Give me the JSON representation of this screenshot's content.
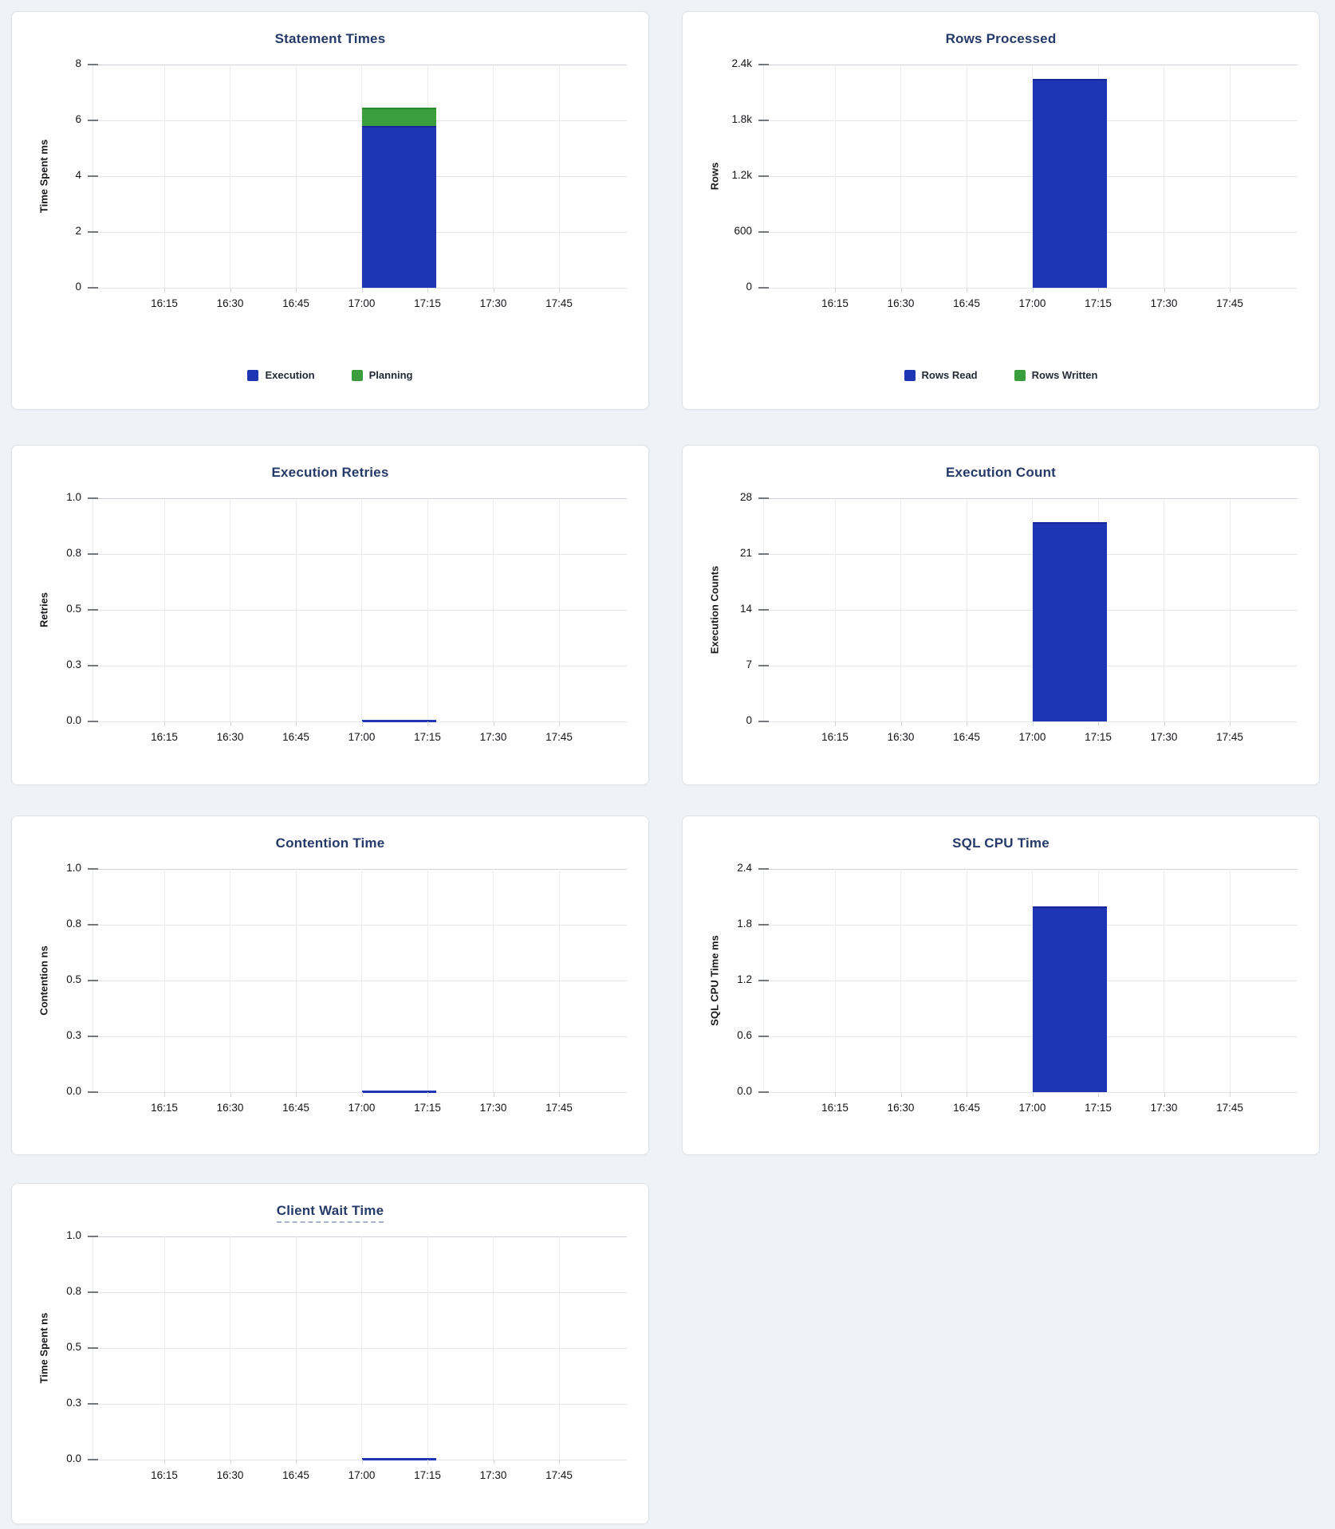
{
  "colors": {
    "bar_blue": "#1e36b4",
    "bar_blue_edge": "#16279b",
    "bar_green": "#3b9e3d",
    "bar_green_edge": "#2e8a31",
    "title_text": "#253a69",
    "tick_text": "#121418",
    "legend_text": "#242a35",
    "page_background": "#eff3f8",
    "card_background": "#ffffff",
    "card_border": "#dfe3e8",
    "tooltip_underline": "#a9b3c6"
  },
  "chart_data": [
    {
      "type": "bar",
      "title": "Statement Times",
      "title_tooltip": false,
      "ylabel": "Time Spent ms",
      "ymax": 8,
      "yticks": [
        "0",
        "2",
        "4",
        "6",
        "8"
      ],
      "x_ticks": [
        "16:15",
        "16:30",
        "16:45",
        "17:00",
        "17:15",
        "17:30",
        "17:45"
      ],
      "xrange": [
        "15:59",
        "18:00"
      ],
      "bar_start": "17:00",
      "bar_end": "17:17",
      "stacked": true,
      "series": [
        {
          "name": "Execution",
          "color": "blue",
          "value": 5.8
        },
        {
          "name": "Planning",
          "color": "green",
          "value": 0.65
        }
      ],
      "legend": true,
      "legend_position": "bottom"
    },
    {
      "type": "bar",
      "title": "Rows Processed",
      "title_tooltip": false,
      "ylabel": "Rows",
      "ymax": 2400,
      "yticks": [
        "0",
        "600",
        "1.2k",
        "1.8k",
        "2.4k"
      ],
      "x_ticks": [
        "16:15",
        "16:30",
        "16:45",
        "17:00",
        "17:15",
        "17:30",
        "17:45"
      ],
      "xrange": [
        "15:59",
        "18:00"
      ],
      "bar_start": "17:00",
      "bar_end": "17:17",
      "stacked": true,
      "series": [
        {
          "name": "Rows Read",
          "color": "blue",
          "value": 2250
        },
        {
          "name": "Rows Written",
          "color": "green",
          "value": 0
        }
      ],
      "legend": true,
      "legend_position": "bottom"
    },
    {
      "type": "bar",
      "title": "Execution Retries",
      "title_tooltip": false,
      "ylabel": "Retries",
      "ymax": 1,
      "yticks": [
        "0.0",
        "0.3",
        "0.5",
        "0.8",
        "1.0"
      ],
      "x_ticks": [
        "16:15",
        "16:30",
        "16:45",
        "17:00",
        "17:15",
        "17:30",
        "17:45"
      ],
      "xrange": [
        "15:59",
        "18:00"
      ],
      "bar_start": "17:00",
      "bar_end": "17:17",
      "stacked": false,
      "series": [
        {
          "color": "blue",
          "value": 0
        }
      ],
      "legend": false
    },
    {
      "type": "bar",
      "title": "Execution Count",
      "title_tooltip": false,
      "ylabel": "Execution Counts",
      "ymax": 28,
      "yticks": [
        "0",
        "7",
        "14",
        "21",
        "28"
      ],
      "x_ticks": [
        "16:15",
        "16:30",
        "16:45",
        "17:00",
        "17:15",
        "17:30",
        "17:45"
      ],
      "xrange": [
        "15:59",
        "18:00"
      ],
      "bar_start": "17:00",
      "bar_end": "17:17",
      "stacked": false,
      "series": [
        {
          "color": "blue",
          "value": 25
        }
      ],
      "legend": false
    },
    {
      "type": "bar",
      "title": "Contention Time",
      "title_tooltip": false,
      "ylabel": "Contention ns",
      "ymax": 1,
      "yticks": [
        "0.0",
        "0.3",
        "0.5",
        "0.8",
        "1.0"
      ],
      "x_ticks": [
        "16:15",
        "16:30",
        "16:45",
        "17:00",
        "17:15",
        "17:30",
        "17:45"
      ],
      "xrange": [
        "15:59",
        "18:00"
      ],
      "bar_start": "17:00",
      "bar_end": "17:17",
      "stacked": false,
      "series": [
        {
          "color": "blue",
          "value": 0
        }
      ],
      "legend": false
    },
    {
      "type": "bar",
      "title": "SQL CPU Time",
      "title_tooltip": false,
      "ylabel": "SQL CPU Time ms",
      "ymax": 2.4,
      "yticks": [
        "0.0",
        "0.6",
        "1.2",
        "1.8",
        "2.4"
      ],
      "x_ticks": [
        "16:15",
        "16:30",
        "16:45",
        "17:00",
        "17:15",
        "17:30",
        "17:45"
      ],
      "xrange": [
        "15:59",
        "18:00"
      ],
      "bar_start": "17:00",
      "bar_end": "17:17",
      "stacked": false,
      "series": [
        {
          "color": "blue",
          "value": 2.0
        }
      ],
      "legend": false
    },
    {
      "type": "bar",
      "title": "Client Wait Time",
      "title_tooltip": true,
      "ylabel": "Time Spent ns",
      "ymax": 1,
      "yticks": [
        "0.0",
        "0.3",
        "0.5",
        "0.8",
        "1.0"
      ],
      "x_ticks": [
        "16:15",
        "16:30",
        "16:45",
        "17:00",
        "17:15",
        "17:30",
        "17:45"
      ],
      "xrange": [
        "15:59",
        "18:00"
      ],
      "bar_start": "17:00",
      "bar_end": "17:17",
      "stacked": false,
      "series": [
        {
          "color": "blue",
          "value": 0
        }
      ],
      "legend": false
    }
  ]
}
